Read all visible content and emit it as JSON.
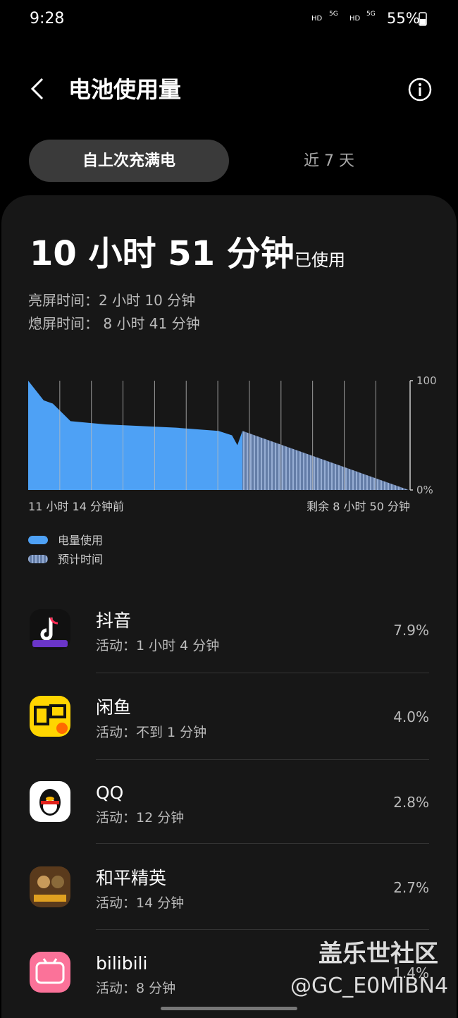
{
  "status_bar": {
    "time": "9:28",
    "network": [
      "HD",
      "5G",
      "HD",
      "5G"
    ],
    "battery": "55%"
  },
  "header": {
    "title": "电池使用量"
  },
  "tabs": [
    "自上次充满电",
    "近 7 天"
  ],
  "summary": {
    "total": "10 小时 51 分钟",
    "suffix": "已使用",
    "screen_on": "亮屏时间：2 小时 10 分钟",
    "screen_off": "熄屏时间： 8 小时 41 分钟"
  },
  "chart_data": {
    "type": "area",
    "x_start_label": "11 小时 14 分钟前",
    "x_end_label": "剩余 8 小时 50 分钟",
    "xlim": [
      0,
      1204
    ],
    "ylim": [
      0,
      100
    ],
    "yticks": [
      {
        "value": 0,
        "label": "0%"
      },
      100
    ],
    "xgrid": [
      100,
      200,
      300,
      400,
      500,
      600,
      700,
      800,
      900,
      1000,
      1100
    ],
    "series": [
      {
        "name": "电量使用",
        "color": "#4ea1f5",
        "x": [
          0,
          49,
          78,
          134,
          245,
          468,
          602,
          645,
          662,
          678
        ],
        "values": [
          100,
          82,
          79,
          63,
          60,
          57,
          54,
          50,
          41,
          54
        ]
      },
      {
        "name": "预计时间",
        "color": "#7d9fd6",
        "x": [
          678,
          1204
        ],
        "values": [
          54,
          0
        ]
      }
    ]
  },
  "apps": [
    {
      "name": "抖音",
      "activity": "活动：1 小时 4 分钟",
      "percent": "7.9%"
    },
    {
      "name": "闲鱼",
      "activity": "活动：不到 1 分钟",
      "percent": "4.0%"
    },
    {
      "name": "QQ",
      "activity": "活动：12 分钟",
      "percent": "2.8%"
    },
    {
      "name": "和平精英",
      "activity": "活动：14 分钟",
      "percent": "2.7%"
    },
    {
      "name": "bilibili",
      "activity": "活动：8 分钟",
      "percent": "1.4%"
    }
  ],
  "watermark": {
    "site": "盖乐世社区",
    "user": "@GC_E0MIBN4"
  }
}
